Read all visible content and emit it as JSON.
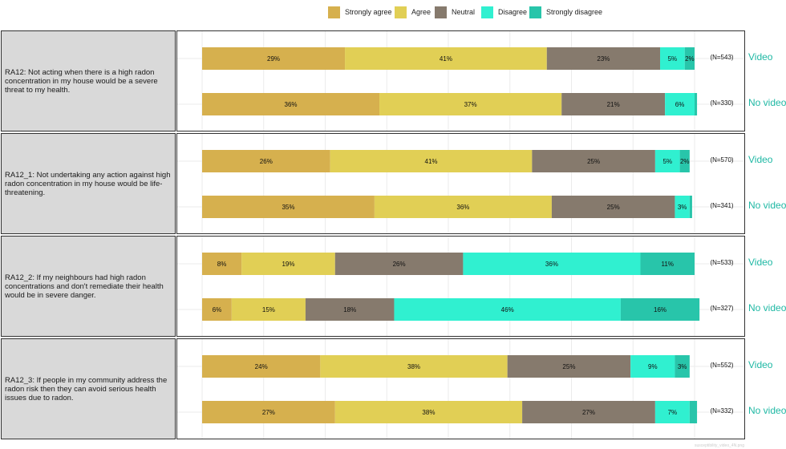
{
  "chart_data": {
    "type": "bar",
    "orientation": "horizontal-stacked-100",
    "legend": {
      "position": "top",
      "items": [
        {
          "label": "Strongly agree",
          "color": "#d6b04e"
        },
        {
          "label": "Agree",
          "color": "#e1cf55"
        },
        {
          "label": "Neutral",
          "color": "#867a6d"
        },
        {
          "label": "Disagree",
          "color": "#30f0d0"
        },
        {
          "label": "Strongly disagree",
          "color": "#28c5aa"
        }
      ]
    },
    "panels": [
      {
        "label": "RA12: Not acting when there is a high radon concentration in my house would be a severe threat to my health.",
        "rows": [
          {
            "group": "Video",
            "n": "(N=543)",
            "values": [
              29,
              41,
              23,
              5,
              2
            ],
            "labels": [
              "29%",
              "41%",
              "23%",
              "5%",
              "2%"
            ]
          },
          {
            "group": "No video",
            "n": "(N=330)",
            "values": [
              36,
              37,
              21,
              6,
              0.5
            ],
            "labels": [
              "36%",
              "37%",
              "21%",
              "6%",
              ""
            ]
          }
        ]
      },
      {
        "label": "RA12_1: Not undertaking any action against high radon concentration in my house would be life-threatening.",
        "rows": [
          {
            "group": "Video",
            "n": "(N=570)",
            "values": [
              26,
              41,
              25,
              5,
              2
            ],
            "labels": [
              "26%",
              "41%",
              "25%",
              "5%",
              "2%"
            ]
          },
          {
            "group": "No video",
            "n": "(N=341)",
            "values": [
              35,
              36,
              25,
              3,
              0.5
            ],
            "labels": [
              "35%",
              "36%",
              "25%",
              "3%",
              ""
            ]
          }
        ]
      },
      {
        "label": "RA12_2: If my neighbours had high radon concentrations and don't remediate their health would be in severe danger.",
        "rows": [
          {
            "group": "Video",
            "n": "(N=533)",
            "values": [
              8,
              19,
              26,
              36,
              11
            ],
            "labels": [
              "8%",
              "19%",
              "26%",
              "36%",
              "11%"
            ]
          },
          {
            "group": "No video",
            "n": "(N=327)",
            "values": [
              6,
              15,
              18,
              46,
              16
            ],
            "labels": [
              "6%",
              "15%",
              "18%",
              "46%",
              "16%"
            ]
          }
        ]
      },
      {
        "label": "RA12_3: If people in my community address the radon risk then they can avoid serious health issues due to radon.",
        "rows": [
          {
            "group": "Video",
            "n": "(N=552)",
            "values": [
              24,
              38,
              25,
              9,
              3
            ],
            "labels": [
              "24%",
              "38%",
              "25%",
              "9%",
              "3%"
            ]
          },
          {
            "group": "No video",
            "n": "(N=332)",
            "values": [
              27,
              38,
              27,
              7,
              1.5
            ],
            "labels": [
              "27%",
              "38%",
              "27%",
              "7%",
              ""
            ]
          }
        ]
      }
    ],
    "grid": true,
    "xlim": [
      0,
      100
    ]
  },
  "caption": "susceptibility_video_4N.png"
}
